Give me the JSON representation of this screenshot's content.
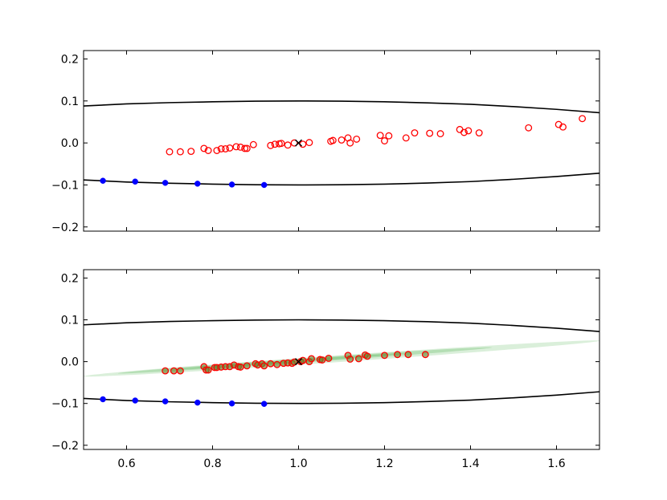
{
  "chart_data": [
    {
      "type": "scatter",
      "panel": "top",
      "xlim": [
        0.5,
        1.7
      ],
      "ylim": [
        -0.21,
        0.22
      ],
      "yticks": [
        0.2,
        0.1,
        0.0,
        -0.1,
        -0.2
      ],
      "ytick_labels": [
        "0.2",
        "0.1",
        "0.0",
        "−0.1",
        "−0.2"
      ],
      "xticks": [
        0.6,
        0.8,
        1.0,
        1.2,
        1.4,
        1.6
      ],
      "xtick_labels": [],
      "colors": {
        "boundary": "#000000",
        "samples": "#ff0000",
        "blue_points": "#0000ff",
        "center": "#000000"
      },
      "boundary_upper": {
        "x": [
          0.5,
          0.6,
          0.7,
          0.8,
          0.9,
          1.0,
          1.1,
          1.2,
          1.3,
          1.4,
          1.5,
          1.6,
          1.7
        ],
        "y": [
          0.088,
          0.093,
          0.096,
          0.098,
          0.0995,
          0.1,
          0.0995,
          0.098,
          0.0955,
          0.092,
          0.0865,
          0.08,
          0.072
        ]
      },
      "boundary_lower": {
        "x": [
          0.5,
          0.6,
          0.7,
          0.8,
          0.9,
          1.0,
          1.1,
          1.2,
          1.3,
          1.4,
          1.5,
          1.6,
          1.7
        ],
        "y": [
          -0.088,
          -0.093,
          -0.096,
          -0.098,
          -0.0995,
          -0.1,
          -0.0995,
          -0.098,
          -0.0955,
          -0.092,
          -0.0865,
          -0.08,
          -0.072
        ]
      },
      "blue_points": {
        "x": [
          0.545,
          0.62,
          0.69,
          0.765,
          0.845,
          0.92
        ],
        "y": [
          -0.09,
          -0.092,
          -0.095,
          -0.097,
          -0.099,
          -0.1
        ]
      },
      "center_marker": {
        "x": 1.0,
        "y": 0.0
      },
      "samples": {
        "x": [
          0.7,
          0.725,
          0.75,
          0.78,
          0.79,
          0.81,
          0.82,
          0.83,
          0.84,
          0.855,
          0.865,
          0.875,
          0.88,
          0.895,
          0.935,
          0.945,
          0.955,
          0.96,
          0.975,
          0.99,
          1.01,
          1.025,
          1.075,
          1.08,
          1.1,
          1.115,
          1.12,
          1.135,
          1.19,
          1.2,
          1.21,
          1.25,
          1.27,
          1.305,
          1.33,
          1.375,
          1.385,
          1.395,
          1.42,
          1.535,
          1.605,
          1.615,
          1.66
        ],
        "y": [
          -0.021,
          -0.021,
          -0.02,
          -0.013,
          -0.018,
          -0.018,
          -0.014,
          -0.014,
          -0.012,
          -0.009,
          -0.01,
          -0.013,
          -0.013,
          -0.004,
          -0.006,
          -0.003,
          -0.002,
          -0.001,
          -0.005,
          0.0,
          -0.003,
          0.001,
          0.004,
          0.006,
          0.007,
          0.012,
          0.0,
          0.009,
          0.018,
          0.005,
          0.017,
          0.012,
          0.024,
          0.023,
          0.022,
          0.032,
          0.025,
          0.029,
          0.024,
          0.036,
          0.044,
          0.038,
          0.058
        ]
      }
    },
    {
      "type": "scatter",
      "panel": "bottom",
      "xlim": [
        0.5,
        1.7
      ],
      "ylim": [
        -0.21,
        0.22
      ],
      "yticks": [
        0.2,
        0.1,
        0.0,
        -0.1,
        -0.2
      ],
      "ytick_labels": [
        "0.2",
        "0.1",
        "0.0",
        "−0.1",
        "−0.2"
      ],
      "xticks": [
        0.6,
        0.8,
        1.0,
        1.2,
        1.4,
        1.6
      ],
      "xtick_labels": [
        "0.6",
        "0.8",
        "1.0",
        "1.2",
        "1.4",
        "1.6"
      ],
      "colors": {
        "boundary": "#000000",
        "samples": "#ff0000",
        "sample_fill": "#6e7d2a",
        "blue_points": "#0000ff",
        "center": "#000000",
        "band": "#6cbf6c"
      },
      "boundary_upper": {
        "x": [
          0.5,
          0.6,
          0.7,
          0.8,
          0.9,
          1.0,
          1.1,
          1.2,
          1.3,
          1.4,
          1.5,
          1.6,
          1.7
        ],
        "y": [
          0.088,
          0.093,
          0.096,
          0.098,
          0.0995,
          0.1,
          0.0995,
          0.098,
          0.0955,
          0.092,
          0.0865,
          0.08,
          0.072
        ]
      },
      "boundary_lower": {
        "x": [
          0.5,
          0.6,
          0.7,
          0.8,
          0.9,
          1.0,
          1.1,
          1.2,
          1.3,
          1.4,
          1.5,
          1.6,
          1.7
        ],
        "y": [
          -0.088,
          -0.093,
          -0.096,
          -0.098,
          -0.0995,
          -0.1,
          -0.0995,
          -0.098,
          -0.0955,
          -0.092,
          -0.0865,
          -0.08,
          -0.072
        ]
      },
      "blue_points": {
        "x": [
          0.545,
          0.62,
          0.69,
          0.765,
          0.845,
          0.92
        ],
        "y": [
          -0.09,
          -0.093,
          -0.095,
          -0.098,
          -0.1,
          -0.101
        ]
      },
      "center_marker": {
        "x": 1.0,
        "y": 0.0
      },
      "bands": [
        {
          "x0": 0.5,
          "y0": -0.035,
          "x1": 1.7,
          "y1": 0.05,
          "halfwidth": 0.008,
          "opacity": 0.25
        },
        {
          "x0": 0.58,
          "y0": -0.028,
          "x1": 1.45,
          "y1": 0.034,
          "halfwidth": 0.005,
          "opacity": 0.35
        },
        {
          "x0": 0.72,
          "y0": -0.018,
          "x1": 1.25,
          "y1": 0.02,
          "halfwidth": 0.003,
          "opacity": 0.45
        }
      ],
      "samples": {
        "x": [
          0.69,
          0.71,
          0.725,
          0.78,
          0.785,
          0.79,
          0.805,
          0.81,
          0.82,
          0.83,
          0.84,
          0.85,
          0.86,
          0.865,
          0.88,
          0.9,
          0.905,
          0.915,
          0.92,
          0.935,
          0.95,
          0.965,
          0.975,
          0.985,
          0.99,
          1.005,
          1.01,
          1.025,
          1.03,
          1.05,
          1.055,
          1.07,
          1.115,
          1.12,
          1.14,
          1.155,
          1.16,
          1.2,
          1.23,
          1.255,
          1.295
        ],
        "y": [
          -0.022,
          -0.022,
          -0.022,
          -0.012,
          -0.02,
          -0.02,
          -0.014,
          -0.014,
          -0.013,
          -0.012,
          -0.012,
          -0.008,
          -0.012,
          -0.013,
          -0.01,
          -0.005,
          -0.008,
          -0.005,
          -0.01,
          -0.005,
          -0.007,
          -0.004,
          -0.003,
          -0.004,
          -0.001,
          0.0,
          0.003,
          0.0,
          0.007,
          0.005,
          0.004,
          0.008,
          0.015,
          0.006,
          0.007,
          0.016,
          0.013,
          0.015,
          0.017,
          0.017,
          0.017
        ]
      }
    }
  ]
}
